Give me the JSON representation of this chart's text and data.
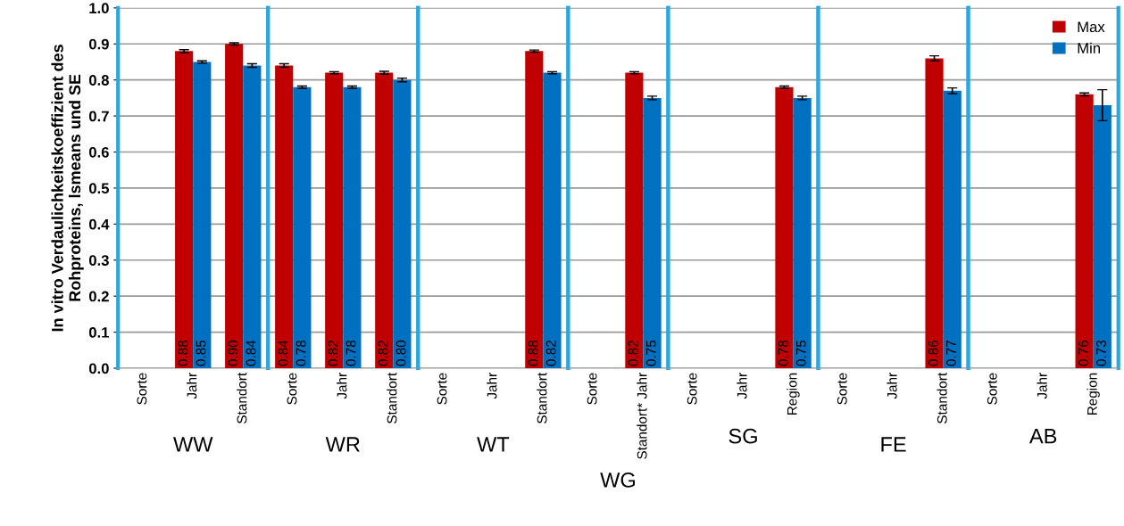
{
  "chart_data": [
    {
      "type": "bar",
      "xlabel": "WW",
      "ylabel": "In vitro Verdaulichkeitskoeffizient des\nRohproteins, lsmeans und SE",
      "categories": [
        "Sorte",
        "Jahr",
        "Standort"
      ],
      "ylim": [
        0,
        1.0
      ],
      "yticks": [
        {
          "value": 0,
          "label": "0.0"
        },
        0.1,
        0.2,
        0.3,
        0.4,
        0.5,
        0.6,
        0.7,
        0.8,
        0.9,
        {
          "value": 1.0,
          "label": "1.0"
        }
      ],
      "grid": "y",
      "series": [
        {
          "color": "#c00000",
          "values": [
            null,
            0.88,
            0.9
          ],
          "errors": [
            null,
            0.004,
            0.003
          ],
          "value_labels": [
            null,
            "0.88",
            "0.90"
          ]
        },
        {
          "color": "#0070c0",
          "values": [
            null,
            0.85,
            0.84
          ],
          "errors": [
            null,
            0.003,
            0.005
          ],
          "value_labels": [
            null,
            "0.85",
            "0.84"
          ]
        }
      ]
    },
    {
      "type": "bar",
      "xlabel": "WR",
      "categories": [
        "Sorte",
        "Jahr",
        "Standort"
      ],
      "ylim": [
        0,
        1.0
      ],
      "tick_labels": "x",
      "grid": "y",
      "series": [
        {
          "color": "#c00000",
          "values": [
            0.84,
            0.82,
            0.82
          ],
          "errors": [
            0.005,
            0.003,
            0.004
          ],
          "value_labels": [
            "0.84",
            "0.82",
            "0.82"
          ]
        },
        {
          "color": "#0070c0",
          "values": [
            0.78,
            0.78,
            0.8
          ],
          "errors": [
            0.003,
            0.003,
            0.005
          ],
          "value_labels": [
            "0.78",
            "0.78",
            "0.80"
          ]
        }
      ]
    },
    {
      "type": "bar",
      "xlabel": "WT",
      "categories": [
        "Sorte",
        "Jahr",
        "Standort"
      ],
      "ylim": [
        0,
        1.0
      ],
      "tick_labels": "x",
      "grid": "y",
      "series": [
        {
          "color": "#c00000",
          "values": [
            null,
            null,
            0.88
          ],
          "errors": [
            null,
            null,
            0.003
          ],
          "value_labels": [
            null,
            null,
            "0.88"
          ]
        },
        {
          "color": "#0070c0",
          "values": [
            null,
            null,
            0.82
          ],
          "errors": [
            null,
            null,
            0.003
          ],
          "value_labels": [
            null,
            null,
            "0.82"
          ]
        }
      ]
    },
    {
      "type": "bar",
      "xlabel": "WG",
      "categories": [
        "Sorte",
        "Standort* Jahr"
      ],
      "ylim": [
        0,
        1.0
      ],
      "tick_labels": "x",
      "grid": "y",
      "series": [
        {
          "color": "#c00000",
          "values": [
            null,
            0.82
          ],
          "errors": [
            null,
            0.003
          ],
          "value_labels": [
            null,
            "0.82"
          ]
        },
        {
          "color": "#0070c0",
          "values": [
            null,
            0.75
          ],
          "errors": [
            null,
            0.005
          ],
          "value_labels": [
            null,
            "0.75"
          ]
        }
      ]
    },
    {
      "type": "bar",
      "xlabel": "SG",
      "categories": [
        "Sorte",
        "Jahr",
        "Region"
      ],
      "ylim": [
        0,
        1.0
      ],
      "tick_labels": "x",
      "grid": "y",
      "series": [
        {
          "color": "#c00000",
          "values": [
            null,
            null,
            0.78
          ],
          "errors": [
            null,
            null,
            0.003
          ],
          "value_labels": [
            null,
            null,
            "0.78"
          ]
        },
        {
          "color": "#0070c0",
          "values": [
            null,
            null,
            0.75
          ],
          "errors": [
            null,
            null,
            0.005
          ],
          "value_labels": [
            null,
            null,
            "0.75"
          ]
        }
      ]
    },
    {
      "type": "bar",
      "xlabel": "FE",
      "categories": [
        "Sorte",
        "Jahr",
        "Standort"
      ],
      "ylim": [
        0,
        1.0
      ],
      "tick_labels": "x",
      "grid": "y",
      "series": [
        {
          "color": "#c00000",
          "values": [
            null,
            null,
            0.86
          ],
          "errors": [
            null,
            null,
            0.007
          ],
          "value_labels": [
            null,
            null,
            "0.86"
          ]
        },
        {
          "color": "#0070c0",
          "values": [
            null,
            null,
            0.77
          ],
          "errors": [
            null,
            null,
            0.008
          ],
          "value_labels": [
            null,
            null,
            "0.77"
          ]
        }
      ]
    },
    {
      "type": "bar",
      "xlabel": "AB",
      "categories": [
        "Sorte",
        "Jahr",
        "Region"
      ],
      "ylim": [
        0,
        1.0
      ],
      "tick_labels": "x",
      "grid": "y",
      "legend": "top right",
      "series": [
        {
          "name": "Max",
          "color": "#c00000",
          "values": [
            null,
            null,
            0.76
          ],
          "errors": [
            null,
            null,
            0.004
          ],
          "value_labels": [
            null,
            null,
            "0.76"
          ]
        },
        {
          "name": "Min",
          "color": "#0070c0",
          "values": [
            null,
            null,
            0.73
          ],
          "errors": [
            null,
            null,
            0.043
          ],
          "value_labels": [
            null,
            null,
            "0.73"
          ]
        }
      ]
    }
  ]
}
